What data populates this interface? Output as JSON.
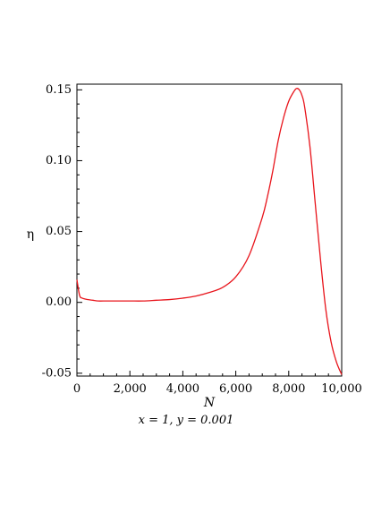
{
  "chart_data": {
    "type": "line",
    "xlabel": "N",
    "ylabel": "η",
    "caption": "x = 1, y = 0.001",
    "xlim": [
      0,
      10000
    ],
    "ylim": [
      -0.052,
      0.154
    ],
    "xticks": [
      0,
      2000,
      4000,
      6000,
      8000,
      10000
    ],
    "xtick_labels": [
      "0",
      "2,000",
      "4,000",
      "6,000",
      "8,000",
      "10,000"
    ],
    "yticks": [
      -0.05,
      0,
      0.05,
      0.1,
      0.15
    ],
    "ytick_labels": [
      "-0.05",
      "0.00",
      "0.05",
      "0.10",
      "0.15"
    ],
    "grid": false,
    "line_color": "#e8141b",
    "series": [
      {
        "x": [
          0,
          100,
          200,
          400,
          600,
          800,
          1000,
          1500,
          2000,
          2500,
          3000,
          3500,
          4000,
          4500,
          5000,
          5500,
          6000,
          6500,
          7000,
          7200,
          7400,
          7600,
          7800,
          8000,
          8200,
          8300,
          8400,
          8500,
          8600,
          8800,
          9000,
          9200,
          9400,
          9600,
          9800,
          10000
        ],
        "y": [
          0.016,
          0.005,
          0.003,
          0.002,
          0.0015,
          0.001,
          0.001,
          0.001,
          0.001,
          0.001,
          0.0015,
          0.002,
          0.003,
          0.0045,
          0.007,
          0.0105,
          0.018,
          0.033,
          0.06,
          0.075,
          0.093,
          0.114,
          0.13,
          0.142,
          0.149,
          0.151,
          0.15,
          0.146,
          0.138,
          0.11,
          0.07,
          0.03,
          -0.005,
          -0.028,
          -0.042,
          -0.051
        ]
      }
    ]
  }
}
